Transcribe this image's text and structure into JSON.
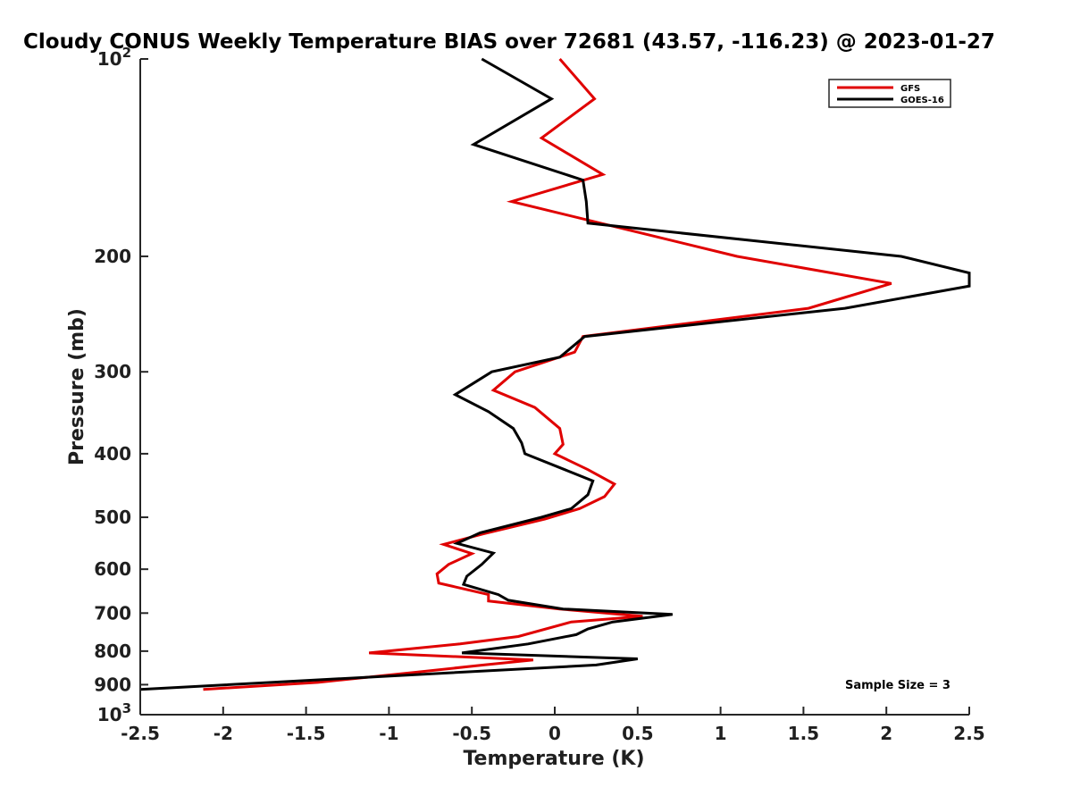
{
  "chart_data": {
    "type": "line",
    "title": "Cloudy CONUS Weekly Temperature BIAS over 72681 (43.57, -116.23) @ 2023-01-27",
    "xlabel": "Temperature (K)",
    "ylabel": "Pressure (mb)",
    "xlim": [
      -2.5,
      2.5
    ],
    "ylim": [
      100,
      1000
    ],
    "y_scale": "log",
    "y_reversed": true,
    "grid": false,
    "legend_position": "top-right",
    "x_ticks": [
      "-2.5",
      "-2",
      "-1.5",
      "-1",
      "-0.5",
      "0",
      "0.5",
      "1",
      "1.5",
      "2",
      "2.5"
    ],
    "y_ticks": [
      {
        "value": 100,
        "base": "10",
        "exp": "2",
        "label": ""
      },
      {
        "value": 200,
        "label": "200"
      },
      {
        "value": 300,
        "label": "300"
      },
      {
        "value": 400,
        "label": "400"
      },
      {
        "value": 500,
        "label": "500"
      },
      {
        "value": 600,
        "label": "600"
      },
      {
        "value": 700,
        "label": "700"
      },
      {
        "value": 800,
        "label": "800"
      },
      {
        "value": 900,
        "label": "900"
      },
      {
        "value": 1000,
        "base": "10",
        "exp": "3",
        "label": ""
      }
    ],
    "annotation": "Sample Size = 3",
    "series": [
      {
        "name": "GFS",
        "color": "#e00000",
        "points": [
          [
            0.03,
            100
          ],
          [
            0.24,
            115
          ],
          [
            -0.08,
            132
          ],
          [
            0.29,
            150
          ],
          [
            -0.26,
            165
          ],
          [
            1.1,
            200
          ],
          [
            2.03,
            220
          ],
          [
            1.53,
            240
          ],
          [
            0.17,
            265
          ],
          [
            0.12,
            280
          ],
          [
            -0.24,
            300
          ],
          [
            -0.37,
            320
          ],
          [
            -0.12,
            340
          ],
          [
            0.03,
            366
          ],
          [
            0.05,
            387
          ],
          [
            0.0,
            400
          ],
          [
            0.2,
            423
          ],
          [
            0.36,
            445
          ],
          [
            0.3,
            465
          ],
          [
            0.15,
            485
          ],
          [
            -0.06,
            503
          ],
          [
            -0.43,
            530
          ],
          [
            -0.67,
            550
          ],
          [
            -0.5,
            568
          ],
          [
            -0.64,
            590
          ],
          [
            -0.71,
            610
          ],
          [
            -0.7,
            630
          ],
          [
            -0.4,
            656
          ],
          [
            -0.4,
            671
          ],
          [
            0.03,
            690
          ],
          [
            0.53,
            708
          ],
          [
            0.1,
            722
          ],
          [
            -0.22,
            760
          ],
          [
            -0.57,
            780
          ],
          [
            -1.12,
            805
          ],
          [
            -0.13,
            825
          ],
          [
            -0.43,
            840
          ],
          [
            -0.85,
            862
          ],
          [
            -1.43,
            893
          ],
          [
            -2.12,
            915
          ]
        ]
      },
      {
        "name": "GOES-16",
        "color": "#000000",
        "points": [
          [
            -0.44,
            100
          ],
          [
            -0.02,
            115
          ],
          [
            -0.49,
            135
          ],
          [
            0.17,
            153
          ],
          [
            0.19,
            165
          ],
          [
            0.2,
            178
          ],
          [
            2.09,
            200
          ],
          [
            2.5,
            212
          ],
          [
            2.5,
            222
          ],
          [
            1.75,
            240
          ],
          [
            0.18,
            265
          ],
          [
            0.03,
            285
          ],
          [
            -0.38,
            300
          ],
          [
            -0.6,
            325
          ],
          [
            -0.4,
            345
          ],
          [
            -0.25,
            366
          ],
          [
            -0.2,
            385
          ],
          [
            -0.18,
            400
          ],
          [
            0.06,
            423
          ],
          [
            0.23,
            440
          ],
          [
            0.2,
            462
          ],
          [
            0.1,
            485
          ],
          [
            -0.08,
            500
          ],
          [
            -0.45,
            528
          ],
          [
            -0.59,
            548
          ],
          [
            -0.37,
            567
          ],
          [
            -0.44,
            590
          ],
          [
            -0.53,
            615
          ],
          [
            -0.55,
            633
          ],
          [
            -0.34,
            656
          ],
          [
            -0.28,
            669
          ],
          [
            0.05,
            690
          ],
          [
            0.71,
            703
          ],
          [
            0.35,
            722
          ],
          [
            0.2,
            740
          ],
          [
            0.13,
            755
          ],
          [
            -0.16,
            780
          ],
          [
            -0.56,
            805
          ],
          [
            0.5,
            822
          ],
          [
            0.25,
            840
          ],
          [
            -2.5,
            915
          ]
        ]
      }
    ]
  }
}
